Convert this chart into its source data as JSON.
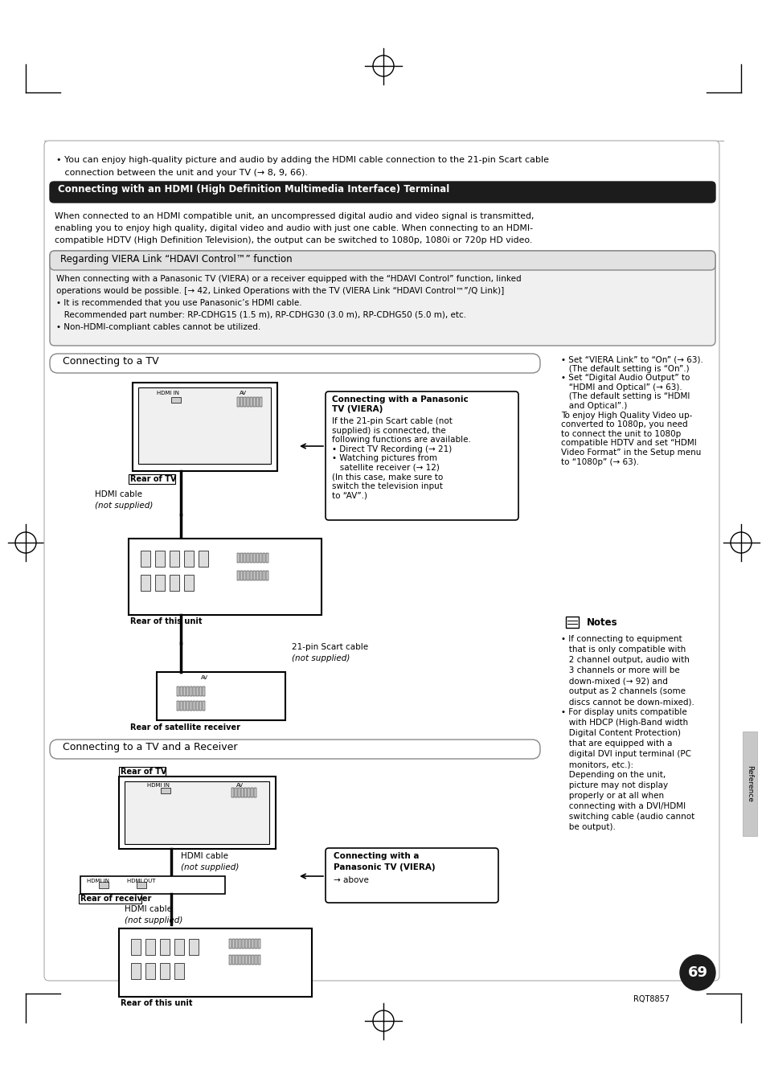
{
  "page_bg": "#ffffff",
  "title_text": "Connecting with an HDMI (High Definition Multimedia Interface) Terminal",
  "viera_title": "Regarding VIERA Link “HDAVI Control™” function",
  "viera_body1": "When connecting with a Panasonic TV (VIERA) or a receiver equipped with the “HDAVI Control” function, linked",
  "viera_body2": "operations would be possible. [→ 42, Linked Operations with the TV (VIERA Link “HDAVI Control™”/Q Link)]",
  "viera_body3": "• It is recommended that you use Panasonic’s HDMI cable.",
  "viera_body4": "   Recommended part number: RP-CDHG15 (1.5 m), RP-CDHG30 (3.0 m), RP-CDHG50 (5.0 m), etc.",
  "viera_body5": "• Non-HDMI-compliant cables cannot be utilized.",
  "intro_line1": "• You can enjoy high-quality picture and audio by adding the HDMI cable connection to the 21-pin Scart cable",
  "intro_line2": "   connection between the unit and your TV (→ 8, 9, 66).",
  "hdmi_intro1": "When connected to an HDMI compatible unit, an uncompressed digital audio and video signal is transmitted,",
  "hdmi_intro2": "enabling you to enjoy high quality, digital video and audio with just one cable. When connecting to an HDMI-",
  "hdmi_intro3": "compatible HDTV (High Definition Television), the output can be switched to 1080p, 1080i or 720p HD video.",
  "connecting_tv_title": "Connecting to a TV",
  "connecting_tv_receiver_title": "Connecting to a TV and a Receiver",
  "right_col_text": "• Set “VIERA Link” to “On” (→ 63).\n   (The default setting is “On”.)\n• Set “Digital Audio Output” to\n   “HDMI and Optical” (→ 63).\n   (The default setting is “HDMI\n   and Optical”.)\nTo enjoy High Quality Video up-\nconverted to 1080p, you need\nto connect the unit to 1080p\ncompatible HDTV and set “HDMI\nVideo Format” in the Setup menu\nto “1080p” (→ 63).",
  "panasonic_tv_box_title": "Connecting with a Panasonic\nTV (VIERA)",
  "panasonic_tv_box_body": "If the 21-pin Scart cable (not\nsupplied) is connected, the\nfollowing functions are available.\n• Direct TV Recording (→ 21)\n• Watching pictures from\n   satellite receiver (→ 12)\n(In this case, make sure to\nswitch the television input\nto “AV”.)",
  "notes_title": "Notes",
  "notes_body1": "• If connecting to equipment",
  "notes_body2": "   that is only compatible with",
  "notes_body3": "   2 channel output, audio with",
  "notes_body4": "   3 channels or more will be",
  "notes_body5": "   down-mixed (→ 92) and",
  "notes_body6": "   output as 2 channels (some",
  "notes_body7": "   discs cannot be down-mixed).",
  "notes_body8": "• For display units compatible",
  "notes_body9": "   with HDCP (High-Band width",
  "notes_body10": "   Digital Content Protection)",
  "notes_body11": "   that are equipped with a",
  "notes_body12": "   digital DVI input terminal (PC",
  "notes_body13": "   monitors, etc.):",
  "notes_body14": "   Depending on the unit,",
  "notes_body15": "   picture may not display",
  "notes_body16": "   properly or at all when",
  "notes_body17": "   connecting with a DVI/HDMI",
  "notes_body18": "   switching cable (audio cannot",
  "notes_body19": "   be output).",
  "connecting_box2_title": "Connecting with a",
  "connecting_box2_line2": "Panasonic TV (VIERA)",
  "connecting_box2_arrow": "→ above",
  "rear_tv": "Rear of TV",
  "rear_this_unit": "Rear of this unit",
  "rear_satellite": "Rear of satellite receiver",
  "rear_receiver": "Rear of receiver",
  "hdmi_cable": "HDMI cable",
  "not_supplied": "(not supplied)",
  "scart_label1": "21-pin Scart cable",
  "scart_label2": "(not supplied)",
  "hdmi_in": "HDMI IN",
  "av_label": "AV",
  "hdmi_in_label": "HDMI IN",
  "hdmi_out_label": "HDMI OUT",
  "page_number": "69",
  "reference_label": "Reference",
  "model_number": "RQT8857"
}
